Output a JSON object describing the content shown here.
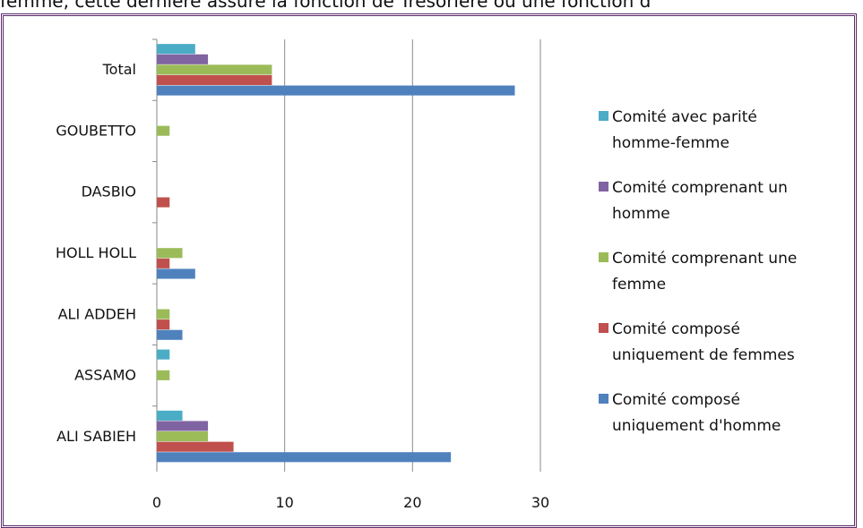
{
  "page_text": "femme, cette dernière assure la fonction de Trésorière ou une fonction d",
  "chart_data": {
    "type": "bar",
    "orientation": "horizontal",
    "categories": [
      "ALI SABIEH",
      "ASSAMO",
      "ALI ADDEH",
      "HOLL HOLL",
      "DASBIO",
      "GOUBETTO",
      "Total"
    ],
    "series": [
      {
        "name": "Comité composé uniquement d'homme",
        "color": "#4f81bd",
        "values": [
          23,
          0,
          2,
          3,
          0,
          0,
          28
        ]
      },
      {
        "name": "Comité composé uniquement de femmes",
        "color": "#c0504d",
        "values": [
          6,
          0,
          1,
          1,
          1,
          0,
          9
        ]
      },
      {
        "name": "Comité comprenant une femme",
        "color": "#9bbb59",
        "values": [
          4,
          1,
          1,
          2,
          0,
          1,
          9
        ]
      },
      {
        "name": "Comité comprenant un homme",
        "color": "#8064a2",
        "values": [
          4,
          0,
          0,
          0,
          0,
          0,
          4
        ]
      },
      {
        "name": "Comité avec parité homme-femme",
        "color": "#4bacc6",
        "values": [
          2,
          1,
          0,
          0,
          0,
          0,
          3
        ]
      }
    ],
    "xlim": [
      0,
      30
    ],
    "xticks": [
      0,
      10,
      20,
      30
    ],
    "grid": true,
    "legend_position": "right",
    "legend_lines": [
      [
        "Comité avec parité",
        "homme-femme"
      ],
      [
        "Comité comprenant un",
        "homme"
      ],
      [
        "Comité comprenant une",
        "femme"
      ],
      [
        "Comité composé",
        "uniquement de femmes"
      ],
      [
        "Comité composé",
        "uniquement d'homme"
      ]
    ],
    "legend_order": [
      4,
      3,
      2,
      1,
      0
    ]
  }
}
